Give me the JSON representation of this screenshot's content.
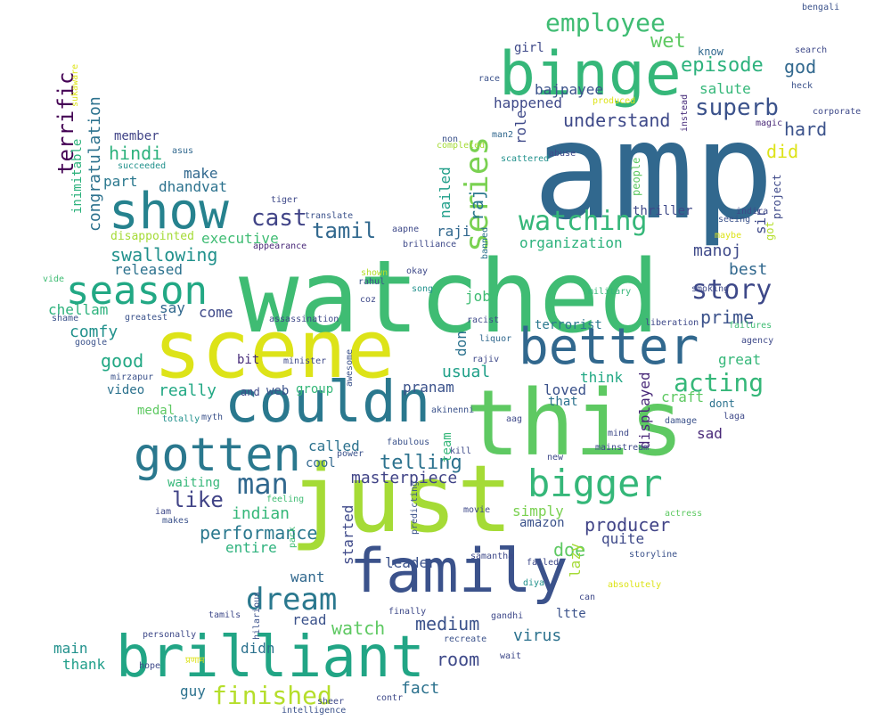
{
  "words": [
    {
      "text": "amp",
      "color": "#31688e"
    },
    {
      "text": "watched",
      "color": "#3fbc73"
    },
    {
      "text": "this",
      "color": "#5ec962"
    },
    {
      "text": "scene",
      "color": "#dde318"
    },
    {
      "text": "just",
      "color": "#a5db36"
    },
    {
      "text": "couldn",
      "color": "#2a788e"
    },
    {
      "text": "binge",
      "color": "#35b779"
    },
    {
      "text": "family",
      "color": "#3b528b"
    },
    {
      "text": "brilliant",
      "color": "#21a585"
    },
    {
      "text": "show",
      "color": "#26828e"
    },
    {
      "text": "gotten",
      "color": "#2a788e"
    },
    {
      "text": "better",
      "color": "#31688e"
    },
    {
      "text": "season",
      "color": "#22a884"
    },
    {
      "text": "bigger",
      "color": "#35b779"
    },
    {
      "text": "series",
      "color": "#7ad151"
    },
    {
      "text": "employee",
      "color": "#3fbc73"
    },
    {
      "text": "watching",
      "color": "#35b779"
    },
    {
      "text": "dream",
      "color": "#2a788e"
    },
    {
      "text": "man",
      "color": "#31688e"
    },
    {
      "text": "finished",
      "color": "#b5de2b"
    },
    {
      "text": "story",
      "color": "#3e4989"
    },
    {
      "text": "superb",
      "color": "#3b528b"
    },
    {
      "text": "episode",
      "color": "#2db27d"
    },
    {
      "text": "acting",
      "color": "#35b779"
    },
    {
      "text": "cast",
      "color": "#414487"
    },
    {
      "text": "wet",
      "color": "#5ec962"
    },
    {
      "text": "terrific",
      "color": "#440154"
    },
    {
      "text": "like",
      "color": "#414487"
    },
    {
      "text": "tamil",
      "color": "#31688e"
    },
    {
      "text": "telling",
      "color": "#2c728e"
    },
    {
      "text": "raj",
      "color": "#2a788e"
    },
    {
      "text": "swallowing",
      "color": "#21918c"
    },
    {
      "text": "performance",
      "color": "#2a788e"
    },
    {
      "text": "medium",
      "color": "#3b528b"
    },
    {
      "text": "room",
      "color": "#3e4989"
    },
    {
      "text": "watch",
      "color": "#5ec962"
    },
    {
      "text": "congratulation",
      "color": "#2c728e"
    },
    {
      "text": "understand",
      "color": "#3e4989"
    },
    {
      "text": "god",
      "color": "#31688e"
    },
    {
      "text": "hard",
      "color": "#3b528b"
    },
    {
      "text": "did",
      "color": "#dde318"
    },
    {
      "text": "prime",
      "color": "#3b528b"
    },
    {
      "text": "producer",
      "color": "#414487"
    },
    {
      "text": "hindi",
      "color": "#2db27d"
    },
    {
      "text": "indian",
      "color": "#35b779"
    },
    {
      "text": "good",
      "color": "#22a884"
    },
    {
      "text": "comfy",
      "color": "#21918c"
    },
    {
      "text": "virus",
      "color": "#2c728e"
    },
    {
      "text": "doe",
      "color": "#5ec962"
    },
    {
      "text": "manoj",
      "color": "#3e4989"
    },
    {
      "text": "best",
      "color": "#31688e"
    },
    {
      "text": "usual",
      "color": "#1fa088"
    },
    {
      "text": "really",
      "color": "#22a884"
    },
    {
      "text": "masterpiece",
      "color": "#414487"
    },
    {
      "text": "fact",
      "color": "#2c728e"
    },
    {
      "text": "guy",
      "color": "#2c728e"
    },
    {
      "text": "main",
      "color": "#21918c"
    },
    {
      "text": "thank",
      "color": "#1f9e89"
    },
    {
      "text": "didn",
      "color": "#2c728e"
    },
    {
      "text": "read",
      "color": "#3b528b"
    },
    {
      "text": "want",
      "color": "#31688e"
    },
    {
      "text": "leader",
      "color": "#3b528b"
    },
    {
      "text": "chellam",
      "color": "#2db27d"
    },
    {
      "text": "say",
      "color": "#31688e"
    },
    {
      "text": "come",
      "color": "#3e4989"
    },
    {
      "text": "dhandvat",
      "color": "#2c728e"
    },
    {
      "text": "make",
      "color": "#31688e"
    },
    {
      "text": "part",
      "color": "#2a788e"
    },
    {
      "text": "executive",
      "color": "#3fbc73"
    },
    {
      "text": "released",
      "color": "#2c728e"
    },
    {
      "text": "entire",
      "color": "#2db27d"
    },
    {
      "text": "called",
      "color": "#2c728e"
    },
    {
      "text": "pranam",
      "color": "#3b528b"
    },
    {
      "text": "organization",
      "color": "#2db27d"
    },
    {
      "text": "raji",
      "color": "#31688e"
    },
    {
      "text": "role",
      "color": "#3e4989"
    },
    {
      "text": "nailed",
      "color": "#1f9e89"
    },
    {
      "text": "job",
      "color": "#3fbc73"
    },
    {
      "text": "don",
      "color": "#2c728e"
    },
    {
      "text": "bajpayee",
      "color": "#3b528b"
    },
    {
      "text": "happened",
      "color": "#3e4989"
    },
    {
      "text": "salute",
      "color": "#35b779"
    },
    {
      "text": "sir",
      "color": "#3e4989"
    },
    {
      "text": "got",
      "color": "#b5de2b"
    },
    {
      "text": "think",
      "color": "#22a884"
    },
    {
      "text": "loved",
      "color": "#3b528b"
    },
    {
      "text": "great",
      "color": "#35b779"
    },
    {
      "text": "craft",
      "color": "#5ec962"
    },
    {
      "text": "displayed",
      "color": "#482878"
    },
    {
      "text": "sad",
      "color": "#482878"
    },
    {
      "text": "quite",
      "color": "#3e4989"
    },
    {
      "text": "lazy",
      "color": "#a5db36"
    },
    {
      "text": "simply",
      "color": "#7ad151"
    },
    {
      "text": "amazon",
      "color": "#3b528b"
    },
    {
      "text": "started",
      "color": "#3e4989"
    },
    {
      "text": "video",
      "color": "#2c728e"
    },
    {
      "text": "medal",
      "color": "#5ec962"
    },
    {
      "text": "web",
      "color": "#3b528b"
    },
    {
      "text": "bit",
      "color": "#472c7a"
    },
    {
      "text": "inimitable",
      "color": "#2db27d"
    },
    {
      "text": "member",
      "color": "#414487"
    },
    {
      "text": "disappointed",
      "color": "#a5db36"
    },
    {
      "text": "group",
      "color": "#35b779"
    },
    {
      "text": "cool",
      "color": "#31688e"
    },
    {
      "text": "team",
      "color": "#35b779"
    },
    {
      "text": "waiting",
      "color": "#35b779"
    },
    {
      "text": "girl",
      "color": "#3e4989"
    },
    {
      "text": "know",
      "color": "#31688e"
    },
    {
      "text": "thriller",
      "color": "#3e4989"
    },
    {
      "text": "terrorist",
      "color": "#2a788e"
    },
    {
      "text": "ltte",
      "color": "#3b528b"
    },
    {
      "text": "dont",
      "color": "#2c728e"
    },
    {
      "text": "that",
      "color": "#2c728e"
    },
    {
      "text": "and",
      "color": "#3e4989"
    },
    {
      "text": "people",
      "color": "#5ec962"
    },
    {
      "text": "project",
      "color": "#3e4989"
    },
    {
      "text": "samantha",
      "color": "#3e4989"
    },
    {
      "text": "produced",
      "color": "#dde318"
    },
    {
      "text": "race",
      "color": "#3b528b"
    },
    {
      "text": "bengali",
      "color": "#3b528b"
    },
    {
      "text": "search",
      "color": "#3e4989"
    },
    {
      "text": "heck",
      "color": "#3b528b"
    },
    {
      "text": "corporate",
      "color": "#3e4989"
    },
    {
      "text": "magic",
      "color": "#482878"
    },
    {
      "text": "instead",
      "color": "#472c7a"
    },
    {
      "text": "non",
      "color": "#3b528b"
    },
    {
      "text": "completed",
      "color": "#a5db36"
    },
    {
      "text": "man2",
      "color": "#31688e"
    },
    {
      "text": "abuse",
      "color": "#3e4989"
    },
    {
      "text": "scattered",
      "color": "#21918c"
    },
    {
      "text": "banned",
      "color": "#2c728e"
    },
    {
      "text": "brilliance",
      "color": "#3e4989"
    },
    {
      "text": "aapne",
      "color": "#3e4989"
    },
    {
      "text": "translate",
      "color": "#3b528b"
    },
    {
      "text": "tiger",
      "color": "#3e4989"
    },
    {
      "text": "appearance",
      "color": "#482878"
    },
    {
      "text": "succeeded",
      "color": "#21918c"
    },
    {
      "text": "asus",
      "color": "#31688e"
    },
    {
      "text": "sukaware",
      "color": "#dde318"
    },
    {
      "text": "vide",
      "color": "#3fbc73"
    },
    {
      "text": "shame",
      "color": "#3b528b"
    },
    {
      "text": "greatest",
      "color": "#3b528b"
    },
    {
      "text": "google",
      "color": "#3b528b"
    },
    {
      "text": "mirzapur",
      "color": "#3b528b"
    },
    {
      "text": "minister",
      "color": "#3e4989"
    },
    {
      "text": "awesome",
      "color": "#3b528b"
    },
    {
      "text": "assassination",
      "color": "#3e4989"
    },
    {
      "text": "coz",
      "color": "#3e4989"
    },
    {
      "text": "shown",
      "color": "#b5de2b"
    },
    {
      "text": "rahul",
      "color": "#3b528b"
    },
    {
      "text": "okay",
      "color": "#3e4989"
    },
    {
      "text": "song",
      "color": "#21918c"
    },
    {
      "text": "racist",
      "color": "#3e4989"
    },
    {
      "text": "liquor",
      "color": "#31688e"
    },
    {
      "text": "rajiv",
      "color": "#3e4989"
    },
    {
      "text": "akinenni",
      "color": "#3b528b"
    },
    {
      "text": "military",
      "color": "#35b779"
    },
    {
      "text": "liberation",
      "color": "#3e4989"
    },
    {
      "text": "failures",
      "color": "#3fbc73"
    },
    {
      "text": "agency",
      "color": "#3e4989"
    },
    {
      "text": "smoking",
      "color": "#3e4989"
    },
    {
      "text": "maybe",
      "color": "#dde318"
    },
    {
      "text": "seeing",
      "color": "#3b528b"
    },
    {
      "text": "indira",
      "color": "#3e4989"
    },
    {
      "text": "totally",
      "color": "#21918c"
    },
    {
      "text": "myth",
      "color": "#3b528b"
    },
    {
      "text": "laga",
      "color": "#3e4989"
    },
    {
      "text": "aag",
      "color": "#3e4989"
    },
    {
      "text": "mind",
      "color": "#3e4989"
    },
    {
      "text": "damage",
      "color": "#3b528b"
    },
    {
      "text": "mainstream",
      "color": "#3e4989"
    },
    {
      "text": "new",
      "color": "#3e4989"
    },
    {
      "text": "kill",
      "color": "#3e4989"
    },
    {
      "text": "fabulous",
      "color": "#3b528b"
    },
    {
      "text": "power",
      "color": "#3b528b"
    },
    {
      "text": "feeling",
      "color": "#3fbc73"
    },
    {
      "text": "iam",
      "color": "#3e4989"
    },
    {
      "text": "makes",
      "color": "#3b528b"
    },
    {
      "text": "predicting",
      "color": "#3b528b"
    },
    {
      "text": "movie",
      "color": "#3e4989"
    },
    {
      "text": "actress",
      "color": "#5ec962"
    },
    {
      "text": "pack",
      "color": "#3fbc73"
    },
    {
      "text": "storyline",
      "color": "#3b528b"
    },
    {
      "text": "failed",
      "color": "#3e4989"
    },
    {
      "text": "diya",
      "color": "#21918c"
    },
    {
      "text": "absolutely",
      "color": "#dde318"
    },
    {
      "text": "can",
      "color": "#3e4989"
    },
    {
      "text": "finally",
      "color": "#3e4989"
    },
    {
      "text": "gandhi",
      "color": "#3e4989"
    },
    {
      "text": "tamils",
      "color": "#3e4989"
    },
    {
      "text": "personally",
      "color": "#3e4989"
    },
    {
      "text": "hilarious",
      "color": "#3b528b"
    },
    {
      "text": "recreate",
      "color": "#3b528b"
    },
    {
      "text": "wait",
      "color": "#3e4989"
    },
    {
      "text": "hope",
      "color": "#3e4989"
    },
    {
      "text": "sheer",
      "color": "#3e4989"
    },
    {
      "text": "contr",
      "color": "#3e4989"
    },
    {
      "text": "intelligence",
      "color": "#3b528b"
    },
    {
      "text": "प्रणाम",
      "color": "#dde318"
    }
  ]
}
